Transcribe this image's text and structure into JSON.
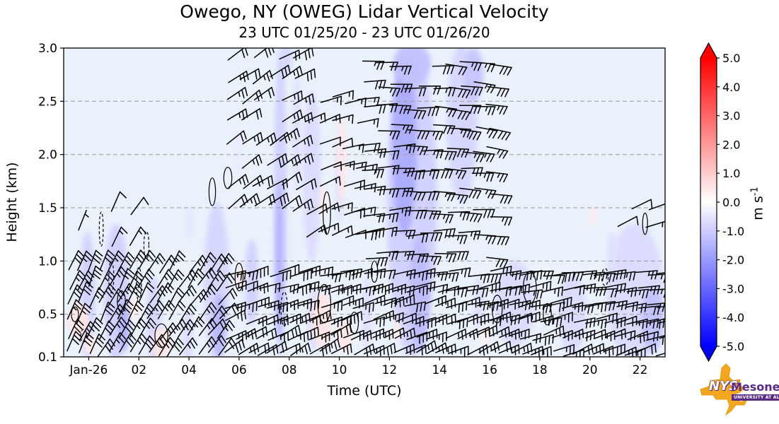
{
  "chart_data": {
    "type": "wind-barb time-height cross-section over vertical-velocity heatmap",
    "title": "Owego, NY (OWEG) Lidar Vertical Velocity",
    "subtitle": "23 UTC 01/25/20 - 23 UTC 01/26/20",
    "xlabel": "Time (UTC)",
    "ylabel": "Height (km)",
    "x_start": "23 UTC 01/25/20",
    "x_hours_span": 24,
    "y_range_km": [
      0.1,
      3.0
    ],
    "x_ticks": [
      {
        "t": 1,
        "label": "Jan-26"
      },
      {
        "t": 3,
        "label": "02"
      },
      {
        "t": 5,
        "label": "04"
      },
      {
        "t": 7,
        "label": "06"
      },
      {
        "t": 9,
        "label": "08"
      },
      {
        "t": 11,
        "label": "10"
      },
      {
        "t": 13,
        "label": "12"
      },
      {
        "t": 15,
        "label": "14"
      },
      {
        "t": 17,
        "label": "16"
      },
      {
        "t": 19,
        "label": "18"
      },
      {
        "t": 21,
        "label": "20"
      },
      {
        "t": 23,
        "label": "22"
      }
    ],
    "y_ticks": [
      {
        "z": 3.0,
        "label": "3.0",
        "grid": false
      },
      {
        "z": 2.5,
        "label": "2.5",
        "grid": true
      },
      {
        "z": 2.0,
        "label": "2.0",
        "grid": true
      },
      {
        "z": 1.5,
        "label": "1.5",
        "grid": true
      },
      {
        "z": 1.0,
        "label": "1.0",
        "grid": true
      },
      {
        "z": 0.5,
        "label": "0.5",
        "grid": true
      },
      {
        "z": 0.1,
        "label": "0.1",
        "grid": false
      }
    ],
    "colorbar": {
      "unit_base": "m s",
      "unit_sup": "-1",
      "vmin": -5.0,
      "vmax": 5.0,
      "cmap": "blue-white-red",
      "extend": "both",
      "ticks": [
        "5.0",
        "4.0",
        "3.0",
        "2.0",
        "1.0",
        "0.0",
        "-1.0",
        "-2.0",
        "-3.0",
        "-4.0",
        "-5.0"
      ]
    },
    "background_mean_w_ms": -0.2,
    "velocity_patches": [
      {
        "t": 0.95,
        "z": 0.68,
        "dt": 0.6,
        "dz": 1.2,
        "w": -0.9
      },
      {
        "t": 2.1,
        "z": 0.7,
        "dt": 1.0,
        "dz": 1.3,
        "w": -0.9
      },
      {
        "t": 2.4,
        "z": 0.4,
        "dt": 0.45,
        "dz": 0.5,
        "w": -1.5
      },
      {
        "t": 3.6,
        "z": 0.45,
        "dt": 0.6,
        "dz": 0.8,
        "w": -0.8
      },
      {
        "t": 4.95,
        "z": 0.3,
        "dt": 0.4,
        "dz": 0.5,
        "w": -0.7
      },
      {
        "t": 5.0,
        "z": 1.35,
        "dt": 0.3,
        "dz": 0.3,
        "w": -0.5
      },
      {
        "t": 6.1,
        "z": 0.8,
        "dt": 1.0,
        "dz": 1.5,
        "w": -0.8
      },
      {
        "t": 6.2,
        "z": 0.4,
        "dt": 0.5,
        "dz": 0.6,
        "w": -1.4
      },
      {
        "t": 7.5,
        "z": 0.8,
        "dt": 0.55,
        "dz": 0.8,
        "w": -0.9
      },
      {
        "t": 7.0,
        "z": 2.0,
        "dt": 0.3,
        "dz": 0.5,
        "w": -0.4
      },
      {
        "t": 8.65,
        "z": 1.55,
        "dt": 0.5,
        "dz": 2.9,
        "w": -0.9
      },
      {
        "t": 8.6,
        "z": 1.0,
        "dt": 0.3,
        "dz": 1.5,
        "w": -1.5
      },
      {
        "t": 8.9,
        "z": 2.9,
        "dt": 0.4,
        "dz": 0.3,
        "w": -0.8
      },
      {
        "t": 9.3,
        "z": 2.2,
        "dt": 0.35,
        "dz": 1.1,
        "w": -0.6
      },
      {
        "t": 9.9,
        "z": 1.8,
        "dt": 0.7,
        "dz": 1.6,
        "w": -0.7
      },
      {
        "t": 10.0,
        "z": 0.45,
        "dt": 0.45,
        "dz": 0.6,
        "w": -0.7
      },
      {
        "t": 11.0,
        "z": 1.8,
        "dt": 0.3,
        "dz": 0.9,
        "w": -0.6
      },
      {
        "t": 12.1,
        "z": 0.5,
        "dt": 0.4,
        "dz": 0.7,
        "w": -0.6
      },
      {
        "t": 13.9,
        "z": 1.55,
        "dt": 2.0,
        "dz": 2.9,
        "w": -0.9
      },
      {
        "t": 13.6,
        "z": 2.1,
        "dt": 1.0,
        "dz": 1.7,
        "w": -1.6
      },
      {
        "t": 14.2,
        "z": 0.7,
        "dt": 0.8,
        "dz": 1.1,
        "w": -1.3
      },
      {
        "t": 13.9,
        "z": 2.85,
        "dt": 1.5,
        "dz": 0.4,
        "w": -1.2
      },
      {
        "t": 15.9,
        "z": 2.3,
        "dt": 1.2,
        "dz": 1.5,
        "w": -0.8
      },
      {
        "t": 16.35,
        "z": 2.75,
        "dt": 0.8,
        "dz": 0.5,
        "w": -1.1
      },
      {
        "t": 16.6,
        "z": 0.6,
        "dt": 0.45,
        "dz": 0.5,
        "w": -0.6
      },
      {
        "t": 18.0,
        "z": 0.6,
        "dt": 1.6,
        "dz": 0.8,
        "w": -0.7
      },
      {
        "t": 20.3,
        "z": 0.5,
        "dt": 1.1,
        "dz": 0.75,
        "w": -0.7
      },
      {
        "t": 22.8,
        "z": 0.7,
        "dt": 2.3,
        "dz": 1.3,
        "w": -0.7
      },
      {
        "t": 23.5,
        "z": 0.45,
        "dt": 0.9,
        "dz": 0.6,
        "w": -1.2
      },
      {
        "t": 21.9,
        "z": 1.05,
        "dt": 0.4,
        "dz": 0.45,
        "w": -0.6
      },
      {
        "t": 0.6,
        "z": 0.45,
        "dt": 0.85,
        "dz": 0.32,
        "w": 0.5
      },
      {
        "t": 1.05,
        "z": 0.22,
        "dt": 0.5,
        "dz": 0.2,
        "w": 0.4
      },
      {
        "t": 2.8,
        "z": 0.55,
        "dt": 0.4,
        "dz": 0.2,
        "w": 0.35
      },
      {
        "t": 3.9,
        "z": 0.22,
        "dt": 0.75,
        "dz": 0.3,
        "w": 0.5
      },
      {
        "t": 7.1,
        "z": 0.85,
        "dt": 0.35,
        "dz": 0.2,
        "w": 0.45
      },
      {
        "t": 10.3,
        "z": 0.45,
        "dt": 0.85,
        "dz": 0.5,
        "w": 0.5
      },
      {
        "t": 11.2,
        "z": 0.3,
        "dt": 0.6,
        "dz": 0.3,
        "w": 0.45
      },
      {
        "t": 11.1,
        "z": 1.95,
        "dt": 0.35,
        "dz": 0.8,
        "w": 0.45
      },
      {
        "t": 10.35,
        "z": 1.55,
        "dt": 0.25,
        "dz": 0.3,
        "w": 0.4
      },
      {
        "t": 13.3,
        "z": 0.35,
        "dt": 0.3,
        "dz": 0.2,
        "w": 0.4
      },
      {
        "t": 16.8,
        "z": 0.3,
        "dt": 0.3,
        "dz": 0.2,
        "w": 0.3
      },
      {
        "t": 21.1,
        "z": 1.42,
        "dt": 0.28,
        "dz": 0.18,
        "w": 0.4
      }
    ],
    "zero_contours": [
      {
        "t": 0.45,
        "z": 0.5,
        "rt": 0.14,
        "rz": 0.07,
        "dashed": false
      },
      {
        "t": 0.8,
        "z": 0.3,
        "rt": 0.12,
        "rz": 0.06,
        "dashed": true
      },
      {
        "t": 1.5,
        "z": 1.3,
        "rt": 0.08,
        "rz": 0.16,
        "dashed": true
      },
      {
        "t": 1.9,
        "z": 0.85,
        "rt": 0.1,
        "rz": 0.15,
        "dashed": true
      },
      {
        "t": 2.3,
        "z": 0.62,
        "rt": 0.16,
        "rz": 0.1,
        "dashed": false
      },
      {
        "t": 3.0,
        "z": 0.78,
        "rt": 0.1,
        "rz": 0.16,
        "dashed": true
      },
      {
        "t": 3.3,
        "z": 1.15,
        "rt": 0.1,
        "rz": 0.13,
        "dashed": true
      },
      {
        "t": 3.9,
        "z": 0.3,
        "rt": 0.26,
        "rz": 0.11,
        "dashed": false
      },
      {
        "t": 5.93,
        "z": 1.65,
        "rt": 0.13,
        "rz": 0.13,
        "dashed": false
      },
      {
        "t": 6.55,
        "z": 1.78,
        "rt": 0.16,
        "rz": 0.1,
        "dashed": false
      },
      {
        "t": 7.0,
        "z": 0.85,
        "rt": 0.16,
        "rz": 0.13,
        "dashed": false
      },
      {
        "t": 8.8,
        "z": 0.55,
        "rt": 0.13,
        "rz": 0.16,
        "dashed": true
      },
      {
        "t": 10.4,
        "z": 0.6,
        "rt": 0.26,
        "rz": 0.18,
        "dashed": false
      },
      {
        "t": 10.5,
        "z": 1.45,
        "rt": 0.15,
        "rz": 0.2,
        "dashed": false
      },
      {
        "t": 11.6,
        "z": 0.42,
        "rt": 0.16,
        "rz": 0.1,
        "dashed": false
      },
      {
        "t": 12.4,
        "z": 0.9,
        "rt": 0.13,
        "rz": 0.1,
        "dashed": false
      },
      {
        "t": 17.3,
        "z": 0.55,
        "rt": 0.2,
        "rz": 0.13,
        "dashed": false
      },
      {
        "t": 18.6,
        "z": 0.75,
        "rt": 0.26,
        "rz": 0.15,
        "dashed": false
      },
      {
        "t": 19.3,
        "z": 0.5,
        "rt": 0.16,
        "rz": 0.1,
        "dashed": false
      },
      {
        "t": 21.6,
        "z": 0.85,
        "rt": 0.13,
        "rz": 0.08,
        "dashed": true
      },
      {
        "t": 23.2,
        "z": 1.35,
        "rt": 0.1,
        "rz": 0.1,
        "dashed": false
      }
    ],
    "barb_regions": [
      {
        "name": "early-low-SSE",
        "t0": 0.2,
        "t1": 6.3,
        "dt": 0.4,
        "z0": 0.13,
        "z1": 1.03,
        "dz": 0.155,
        "dir0": 64,
        "dir1": 50,
        "dh": 6,
        "s0": 28,
        "s1": 22,
        "density": 0.93
      },
      {
        "name": "early-midlevel-sparse",
        "t0": 0.5,
        "t1": 3.4,
        "dt": 0.75,
        "z0": 1.12,
        "z1": 1.48,
        "dz": 0.17,
        "dir0": 72,
        "dir1": 55,
        "dh": 0,
        "s0": 8,
        "s1": 12,
        "density": 0.5
      },
      {
        "name": "morning-upper-SW",
        "t0": 6.6,
        "t1": 9.6,
        "dt": 0.52,
        "z0": 1.5,
        "z1": 2.95,
        "dz": 0.2,
        "dir0": 38,
        "dir1": 30,
        "dh": -2,
        "s0": 22,
        "s1": 27,
        "density": 0.9
      },
      {
        "name": "midday-transition",
        "t0": 9.7,
        "t1": 11.9,
        "dt": 0.5,
        "z0": 1.25,
        "z1": 2.6,
        "dz": 0.21,
        "dir0": 32,
        "dir1": 10,
        "dh": -4,
        "s0": 12,
        "s1": 18,
        "density": 0.8
      },
      {
        "name": "afternoon-upper-W",
        "t0": 12.0,
        "t1": 17.2,
        "dt": 0.55,
        "z0": 1.05,
        "z1": 3.0,
        "dz": 0.2,
        "dir0": 8,
        "dir1": -4,
        "dh": -3,
        "s0": 24,
        "s1": 28,
        "density": 0.92
      },
      {
        "name": "daytime-low",
        "t0": 6.5,
        "t1": 23.9,
        "dt": 0.42,
        "z0": 0.13,
        "z1": 1.0,
        "dz": 0.15,
        "dir0": 32,
        "dir1": 20,
        "dh": -22,
        "s0": 25,
        "s1": 24,
        "density": 0.95
      },
      {
        "name": "late-midlevel-sparse",
        "t0": 22.2,
        "t1": 23.4,
        "dt": 0.55,
        "z0": 1.3,
        "z1": 1.5,
        "dz": 0.18,
        "dir0": 28,
        "dir1": 20,
        "dh": 0,
        "s0": 12,
        "s1": 15,
        "density": 0.7
      }
    ],
    "seed": 7
  },
  "colors": {
    "plot_bg": "#e9f1fb",
    "grid": "#9a9a9a",
    "axis": "#000000",
    "cbar_pos_end": "#ff0000",
    "cbar_neg_end": "#0000ff"
  },
  "logo": {
    "org_abbr": "NYS",
    "org_name": "Mesonet",
    "tagline": "UNIVERSITY AT ALBANY",
    "state_color": "#F3A71E",
    "brand_color": "#582C83"
  }
}
